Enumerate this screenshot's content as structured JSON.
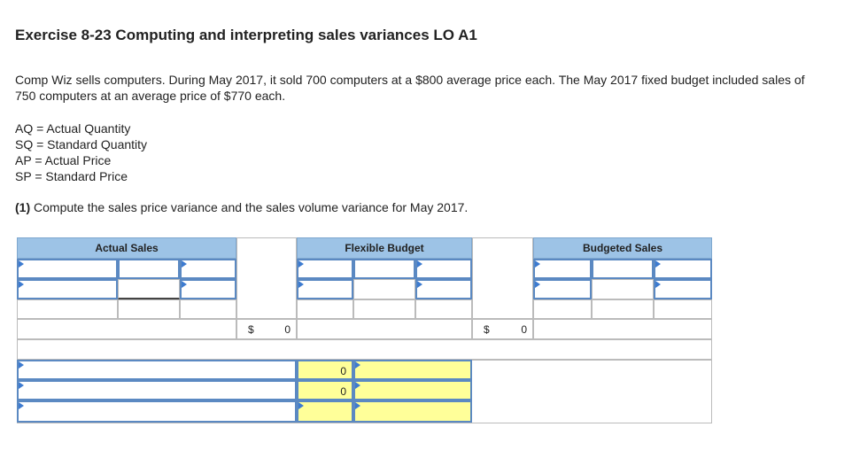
{
  "title": "Exercise 8-23 Computing and interpreting sales variances LO A1",
  "intro": "Comp Wiz sells computers. During May 2017, it sold 700 computers at a $800 average price each. The May 2017 fixed budget included sales of 750 computers at an average price of $770 each.",
  "definitions": [
    "AQ = Actual Quantity",
    "SQ = Standard Quantity",
    "AP = Actual Price",
    "SP = Standard Price"
  ],
  "question": {
    "number": "(1)",
    "text": " Compute the sales price variance and the sales volume variance for May 2017."
  },
  "table": {
    "headers": {
      "actual": "Actual Sales",
      "flexible": "Flexible Budget",
      "budgeted": "Budgeted Sales"
    },
    "totals": {
      "currency": "$",
      "actual_total": "0",
      "flexible_total": "0"
    },
    "variances": {
      "price_value": "0",
      "volume_value": "0"
    }
  }
}
